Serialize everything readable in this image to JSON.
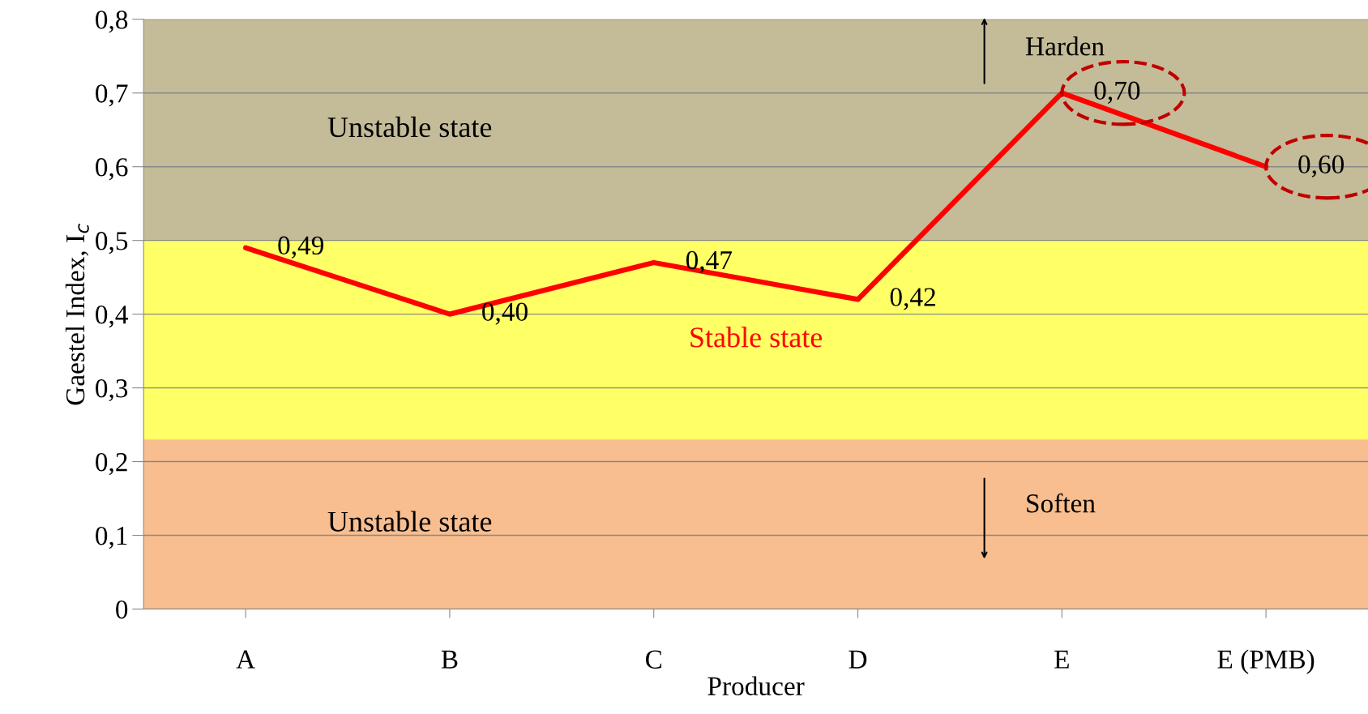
{
  "chart_data": {
    "type": "line",
    "xlabel": "Producer",
    "ylabel": "Gaestel Index, I$_{c}$",
    "categories": [
      "A",
      "B",
      "C",
      "D",
      "E",
      "E (PMB)"
    ],
    "series": [
      {
        "color": "#ff0000",
        "values": [
          0.49,
          0.4,
          0.47,
          0.42,
          0.7,
          0.6
        ],
        "value_labels": [
          "0,49",
          "0,40",
          "0,47",
          "0,42",
          "0,70",
          "0,60"
        ]
      }
    ],
    "ylim": [
      0,
      0.8
    ],
    "yticks": [
      0,
      {
        "value": 0.1,
        "label": "0,1"
      },
      {
        "value": 0.2,
        "label": "0,2"
      },
      {
        "value": 0.3,
        "label": "0,3"
      },
      {
        "value": 0.4,
        "label": "0,4"
      },
      {
        "value": 0.5,
        "label": "0,5"
      },
      {
        "value": 0.6,
        "label": "0,6"
      },
      {
        "value": 0.7,
        "label": "0,7"
      },
      {
        "value": 0.8,
        "label": "0,8"
      }
    ],
    "bands": [
      {
        "axis": "y",
        "from": 0.5,
        "to": 0.8,
        "label": "Unstable state",
        "color": "#c4bb98"
      },
      {
        "axis": "y",
        "from": 0.23,
        "to": 0.5,
        "label": "Stable state",
        "color": "#ffff66"
      },
      {
        "axis": "y",
        "from": 0,
        "to": 0.23,
        "label": "Unstable state",
        "color": "#f9be8f"
      }
    ],
    "annotations": [
      "Harden",
      "Soften"
    ],
    "grid": "y",
    "legend": false,
    "marker": "none",
    "line_style": "solid"
  }
}
